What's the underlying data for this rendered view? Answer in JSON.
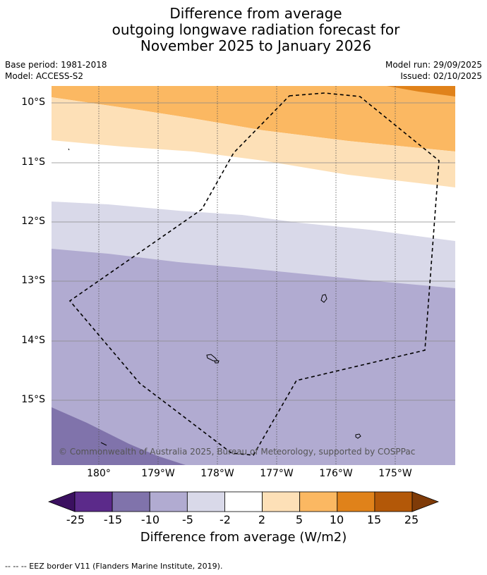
{
  "title": {
    "line1": "Difference from average",
    "line2": "outgoing longwave radiation forecast for",
    "line3": "November 2025 to January 2026"
  },
  "meta": {
    "base_period": "Base period: 1981-2018",
    "model": "Model: ACCESS-S2",
    "model_run": "Model run: 29/09/2025",
    "issued": "Issued: 02/10/2025"
  },
  "map": {
    "lat_labels": [
      "10°S",
      "11°S",
      "12°S",
      "13°S",
      "14°S",
      "15°S"
    ],
    "lon_labels": [
      "180°",
      "179°W",
      "178°W",
      "177°W",
      "176°W",
      "175°W"
    ],
    "copyright": "© Commonwealth of Australia 2025, Bureau of Meteorology, supported by COSPPac",
    "features": [
      "EEZ boundary (dashed)",
      "island outlines"
    ]
  },
  "colorbar": {
    "ticks": [
      "-25",
      "-15",
      "-10",
      "-5",
      "-2",
      "2",
      "5",
      "10",
      "15",
      "25"
    ],
    "colors": [
      "#3b1060",
      "#5b2a8a",
      "#8073ab",
      "#b1abd1",
      "#d9d9e9",
      "#ffffff",
      "#fde0b7",
      "#fbb862",
      "#e0821a",
      "#b35808",
      "#7f3b08"
    ],
    "label": "Difference from average (W/m2)"
  },
  "footnote": "--  --  -- EEZ border V11 (Flanders Marine Institute, 2019)."
}
